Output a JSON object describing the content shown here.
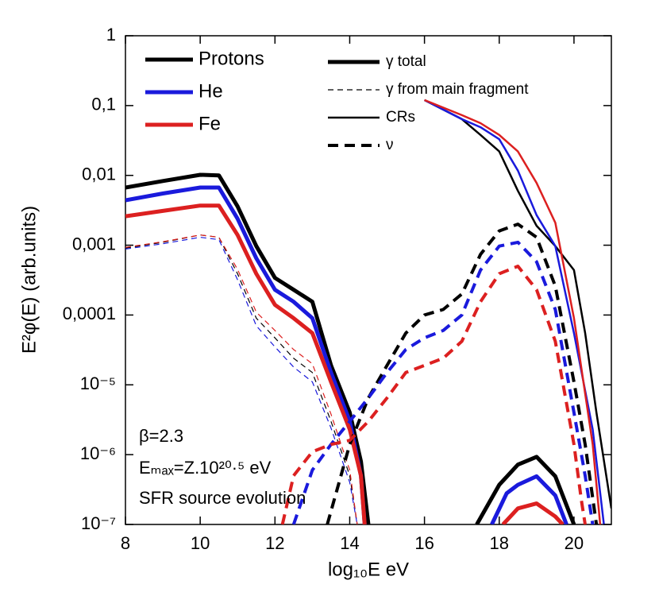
{
  "chart_data": {
    "type": "line",
    "y_title": "E²φ(E) (arb.units)",
    "x_title": "log₁₀E eV",
    "log_y": true,
    "xlim": [
      8,
      21
    ],
    "xticks": [
      8,
      10,
      12,
      14,
      16,
      18,
      20
    ],
    "ylim": [
      1e-07,
      1
    ],
    "yticks": [
      1,
      {
        "value": 0.1,
        "label": "0,1"
      },
      {
        "value": 0.01,
        "label": "0,01"
      },
      {
        "value": 0.001,
        "label": "0,001"
      },
      {
        "value": 0.0001,
        "label": "0,0001"
      },
      {
        "value": 1e-05,
        "label": "10⁻⁵"
      },
      {
        "value": 1e-06,
        "label": "10⁻⁶"
      },
      {
        "value": 1e-07,
        "label": "10⁻⁷"
      }
    ],
    "legend_species": [
      {
        "name": "Protons",
        "color": "#000000"
      },
      {
        "name": "He",
        "color": "#1a1adc"
      },
      {
        "name": "Fe",
        "color": "#dc2020"
      }
    ],
    "legend_styles": [
      {
        "name": "γ total",
        "width": 5,
        "dash": "none"
      },
      {
        "name": "γ from main fragment",
        "width": 1.2,
        "dash": "7,5"
      },
      {
        "name": "CRs",
        "width": 2.5,
        "dash": "none"
      },
      {
        "name": "ν",
        "width": 4,
        "dash": "13,8"
      }
    ],
    "annotations": [
      "β=2.3",
      "Eₘₐₓ=Z.10²⁰·⁵ eV",
      "SFR source evolution"
    ],
    "series": [
      {
        "species": 0,
        "style": 0,
        "x": [
          8,
          9,
          10,
          10.5,
          11,
          11.5,
          12,
          12.5,
          13,
          13.5,
          14,
          14.3,
          14.5,
          16,
          17.4,
          18,
          18.5,
          19,
          19.5,
          20
        ],
        "values": [
          0.0067,
          0.0083,
          0.0102,
          0.01,
          0.0036,
          0.00097,
          0.00034,
          0.00023,
          0.000155,
          1.9e-05,
          4e-06,
          8e-07,
          1e-07,
          null,
          1e-07,
          3.7e-07,
          7.2e-07,
          9.3e-07,
          4.9e-07,
          1e-07
        ]
      },
      {
        "species": 1,
        "style": 0,
        "x": [
          8,
          9,
          10,
          10.5,
          11,
          11.5,
          12,
          12.5,
          13,
          13.5,
          14,
          14.3,
          14.4,
          16,
          17.8,
          18.2,
          18.5,
          19,
          19.5,
          19.8
        ],
        "values": [
          0.0044,
          0.0055,
          0.0067,
          0.0067,
          0.0024,
          0.00065,
          0.00023,
          0.000155,
          9e-05,
          1.5e-05,
          3e-06,
          5e-07,
          1e-07,
          null,
          1e-07,
          2.8e-07,
          3.7e-07,
          4.9e-07,
          2.6e-07,
          1e-07
        ]
      },
      {
        "species": 2,
        "style": 0,
        "x": [
          8,
          9,
          10,
          10.5,
          11,
          11.5,
          12,
          12.5,
          13,
          13.5,
          14,
          14.3,
          14.4,
          16,
          18.1,
          18.5,
          19,
          19.5,
          19.7
        ],
        "values": [
          0.0026,
          0.0031,
          0.0037,
          0.0037,
          0.0014,
          0.00039,
          0.00014,
          9e-05,
          5.5e-05,
          1.1e-05,
          2.3e-06,
          5e-07,
          1e-07,
          null,
          1e-07,
          1.7e-07,
          2e-07,
          1.3e-07,
          1e-07
        ]
      },
      {
        "species": 0,
        "style": 1,
        "x": [
          8,
          9,
          10,
          10.5,
          11,
          11.5,
          12,
          12.5,
          13,
          13.5,
          14,
          14.2
        ],
        "values": [
          0.00091,
          0.0011,
          0.0014,
          0.0013,
          0.00039,
          9e-05,
          4.7e-05,
          2.4e-05,
          1.5e-05,
          3e-06,
          5e-07,
          1e-07
        ]
      },
      {
        "species": 1,
        "style": 1,
        "x": [
          8,
          9,
          10,
          10.5,
          11,
          11.5,
          12,
          12.5,
          13,
          13.5,
          14,
          14.2
        ],
        "values": [
          0.00088,
          0.00105,
          0.0013,
          0.0012,
          0.00032,
          7e-05,
          3.5e-05,
          1.8e-05,
          1.1e-05,
          2.4e-06,
          4e-07,
          1e-07
        ]
      },
      {
        "species": 2,
        "style": 1,
        "x": [
          8,
          9,
          10,
          10.5,
          11,
          11.5,
          12,
          12.5,
          13,
          13.5,
          14,
          14.2
        ],
        "values": [
          0.00093,
          0.00112,
          0.0014,
          0.0013,
          0.00045,
          0.00011,
          6e-05,
          3.2e-05,
          2e-05,
          3.8e-06,
          6e-07,
          1e-07
        ]
      },
      {
        "species": 0,
        "style": 2,
        "x": [
          16,
          17,
          17.5,
          18,
          18.5,
          19,
          19.5,
          20,
          20.3,
          20.6,
          21
        ],
        "values": [
          0.12,
          0.064,
          0.038,
          0.022,
          0.006,
          0.0019,
          0.00097,
          0.00044,
          5.5e-05,
          4e-06,
          1.7e-07
        ]
      },
      {
        "species": 1,
        "style": 2,
        "x": [
          16,
          17,
          17.5,
          18,
          18.5,
          19,
          19.5,
          20,
          20.5,
          20.8
        ],
        "values": [
          0.12,
          0.064,
          0.049,
          0.033,
          0.0117,
          0.0027,
          0.00097,
          5.5e-05,
          2.3e-06,
          1e-07
        ]
      },
      {
        "species": 2,
        "style": 2,
        "x": [
          16,
          17,
          17.5,
          18,
          18.5,
          19,
          19.5,
          20,
          20.5,
          20.7
        ],
        "values": [
          0.12,
          0.073,
          0.056,
          0.038,
          0.022,
          0.0078,
          0.0021,
          9e-05,
          1.4e-06,
          1e-07
        ]
      },
      {
        "species": 0,
        "style": 3,
        "x": [
          13.4,
          14,
          14.5,
          15,
          15.5,
          16,
          16.5,
          17,
          17.5,
          18,
          18.5,
          19,
          19.5,
          20,
          20.3,
          20.6
        ],
        "values": [
          1e-07,
          1.4e-06,
          6.5e-06,
          1.9e-05,
          5.5e-05,
          0.0001,
          0.00012,
          0.0002,
          0.00074,
          0.0016,
          0.002,
          0.0013,
          0.00026,
          1.1e-05,
          1.4e-06,
          1e-07
        ]
      },
      {
        "species": 1,
        "style": 3,
        "x": [
          12.5,
          13,
          13.5,
          14,
          14.5,
          15,
          15.5,
          16,
          16.5,
          17,
          17.5,
          18,
          18.5,
          19,
          19.5,
          20,
          20.3,
          20.5
        ],
        "values": [
          1e-07,
          6e-07,
          1.4e-06,
          3e-06,
          6.5e-06,
          1.5e-05,
          3.2e-05,
          4.7e-05,
          6e-05,
          0.0001,
          0.00044,
          0.00097,
          0.0011,
          0.00058,
          0.00012,
          4e-06,
          5e-07,
          1e-07
        ]
      },
      {
        "species": 2,
        "style": 3,
        "x": [
          12.2,
          12.5,
          13,
          13.5,
          14,
          14.5,
          15,
          15.5,
          16,
          16.5,
          17,
          17.5,
          18,
          18.5,
          19,
          19.5,
          20,
          20.2,
          20.3
        ],
        "values": [
          1e-07,
          5e-07,
          1.1e-06,
          1.4e-06,
          1.6e-06,
          3e-06,
          6.5e-06,
          1.5e-05,
          1.9e-05,
          2.4e-05,
          4.2e-05,
          0.000155,
          0.00039,
          0.0005,
          0.00023,
          4.2e-05,
          1.4e-06,
          2.2e-07,
          1e-07
        ]
      }
    ]
  }
}
